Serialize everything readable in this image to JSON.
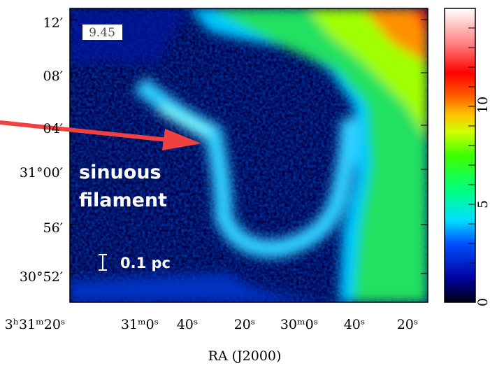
{
  "figure": {
    "panel_label": "9.45",
    "feature_label": [
      "sinuous",
      "filament"
    ],
    "scale_bar": "0.1 pc",
    "y_ticks": [
      "12′",
      "08′",
      "04′",
      "31°00′",
      "56′",
      "30°52′"
    ],
    "x_ticks": [
      "3ʰ31ᵐ20ˢ",
      "31ᵐ0ˢ",
      "40ˢ",
      "20ˢ",
      "30ᵐ0ˢ",
      "40ˢ",
      "20ˢ"
    ],
    "x_label": "RA (J2000)",
    "colorbar_ticks": [
      "0",
      "5",
      "10"
    ]
  }
}
